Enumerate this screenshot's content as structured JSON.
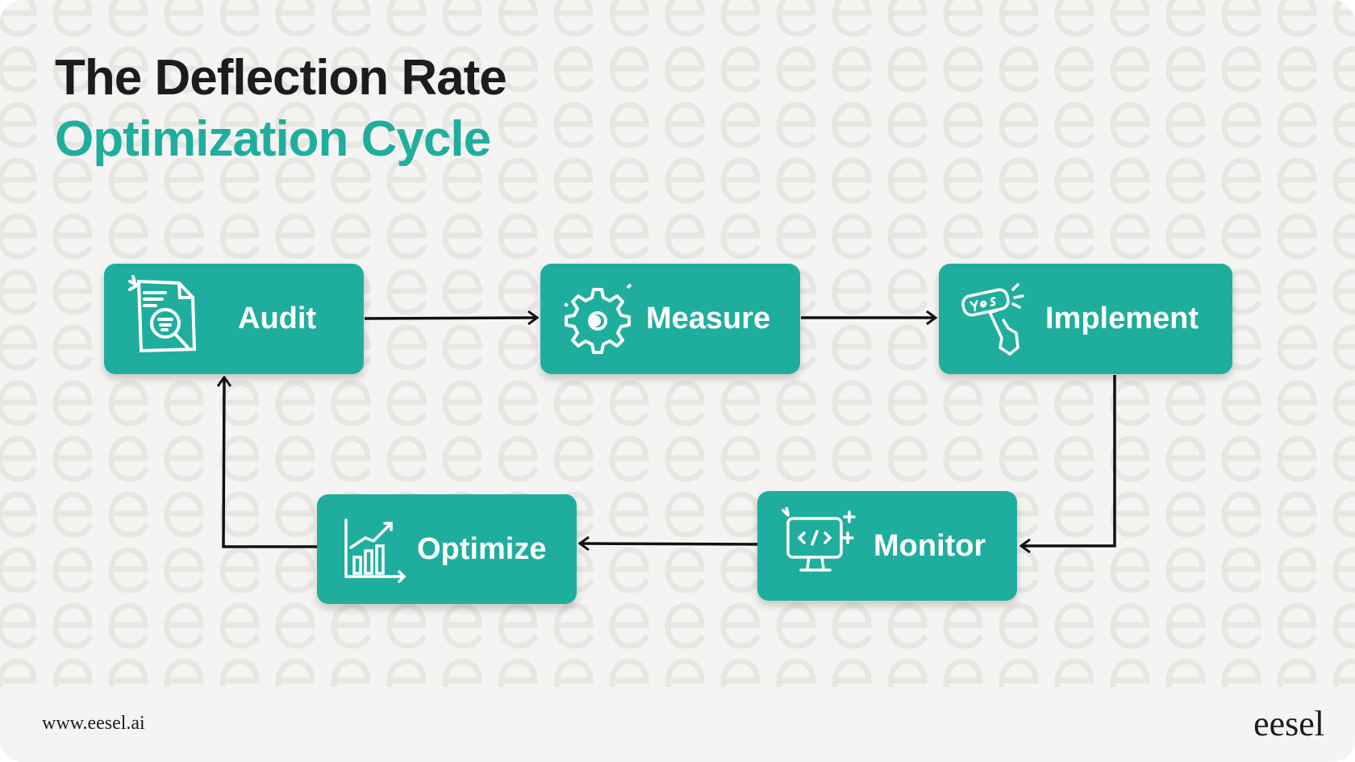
{
  "title": {
    "line1": "The Deflection Rate",
    "line2": "Optimization Cycle"
  },
  "colors": {
    "accent": "#1fae9d",
    "text": "#1c1c1c",
    "background": "#f5f4f2",
    "pattern": "#e7e6e3"
  },
  "steps": [
    {
      "label": "Audit",
      "icon": "document-search-icon"
    },
    {
      "label": "Measure",
      "icon": "gear-icon"
    },
    {
      "label": "Implement",
      "icon": "yes-button-click-icon"
    },
    {
      "label": "Monitor",
      "icon": "monitor-code-icon"
    },
    {
      "label": "Optimize",
      "icon": "bar-chart-growth-icon"
    }
  ],
  "flow": [
    "Audit → Measure",
    "Measure → Implement",
    "Implement → Monitor",
    "Monitor → Optimize",
    "Optimize → Audit"
  ],
  "footer": {
    "url": "www.eesel.ai",
    "logo": "eesel"
  }
}
